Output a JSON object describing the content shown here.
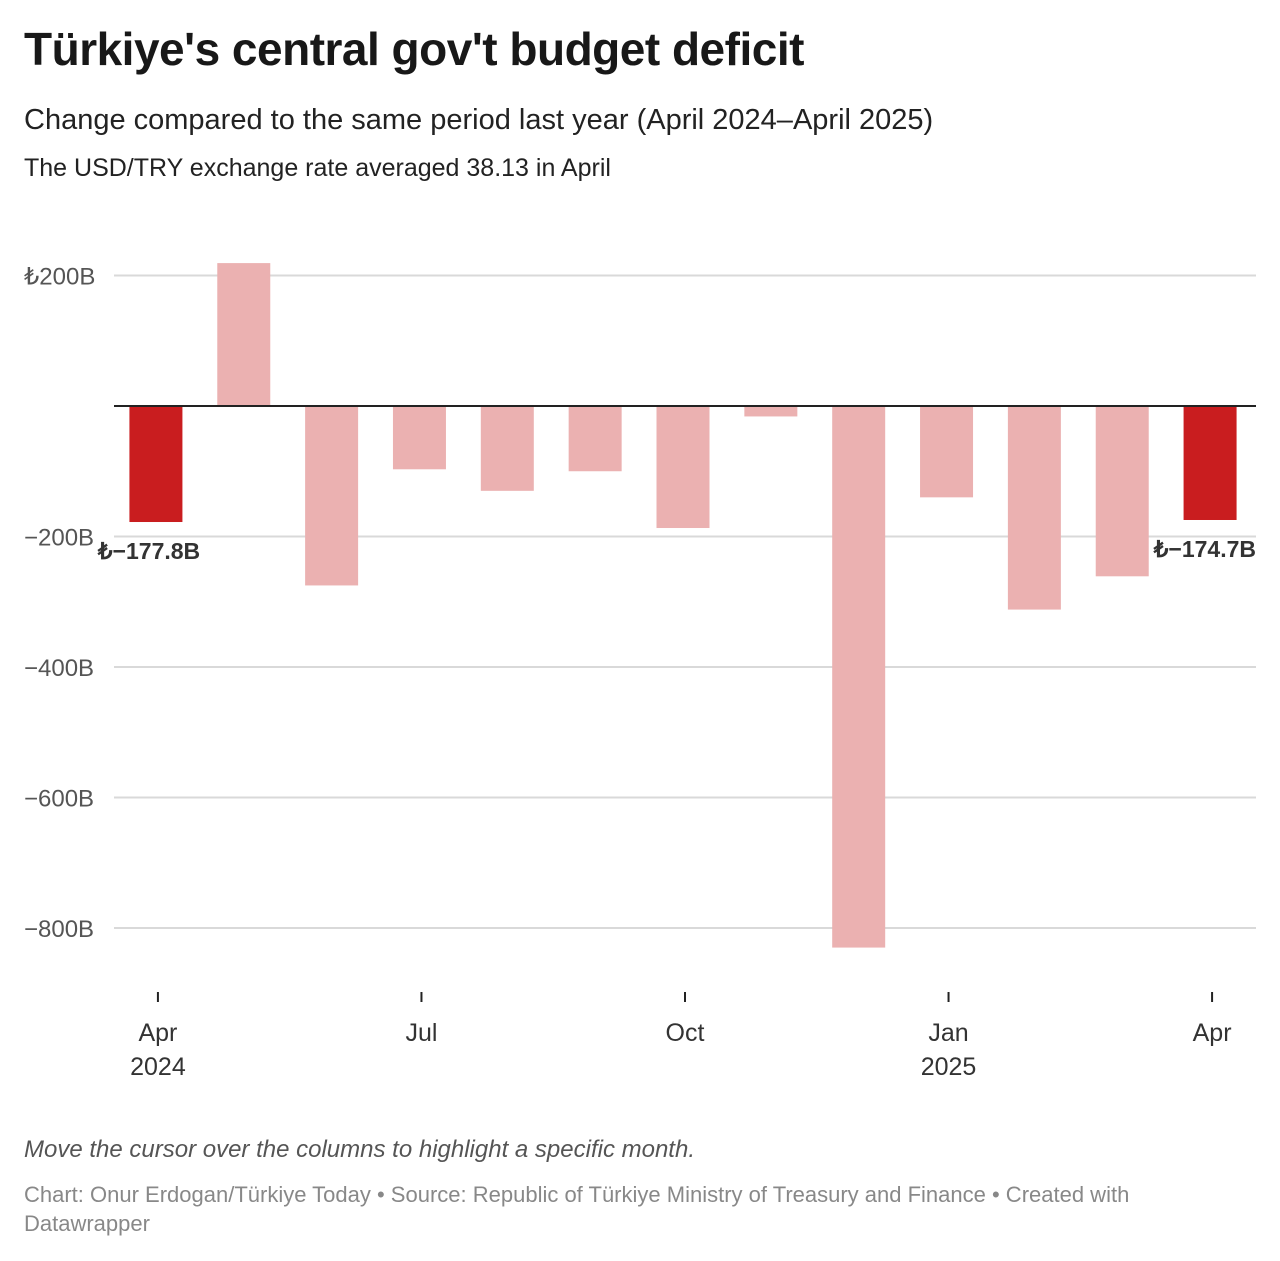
{
  "header": {
    "title": "Türkiye's central gov't budget deficit",
    "subtitle": "Change compared to the same period last year (April 2024–April 2025)",
    "note": "The USD/TRY exchange rate averaged 38.13 in April"
  },
  "footer": {
    "hint": "Move the cursor over the columns to highlight a specific month.",
    "credits": "Chart: Onur Erdogan/Türkiye Today • Source: Republic of Türkiye Ministry of Treasury and Finance • Created with Datawrapper"
  },
  "chart_data": {
    "type": "bar",
    "title": "Türkiye's central gov't budget deficit",
    "categories": [
      "Apr 2024",
      "May 2024",
      "Jun 2024",
      "Jul 2024",
      "Aug 2024",
      "Sep 2024",
      "Oct 2024",
      "Nov 2024",
      "Dec 2024",
      "Jan 2025",
      "Feb 2025",
      "Mar 2025",
      "Apr 2025"
    ],
    "values": [
      -177.8,
      219,
      -275,
      -97,
      -130,
      -100,
      -187,
      -16,
      -830,
      -140,
      -312,
      -261,
      -174.7
    ],
    "highlighted": [
      true,
      false,
      false,
      false,
      false,
      false,
      false,
      false,
      false,
      false,
      false,
      false,
      true
    ],
    "ylim": [
      -900,
      240
    ],
    "y_ticks": [
      {
        "value": 200,
        "label": "₺200B"
      },
      {
        "value": -200,
        "label": "−200B"
      },
      {
        "value": -400,
        "label": "−400B"
      },
      {
        "value": -600,
        "label": "−600B"
      },
      {
        "value": -800,
        "label": "−800B"
      }
    ],
    "x_ticks": [
      {
        "index": 0,
        "label": "Apr",
        "year": "2024"
      },
      {
        "index": 3,
        "label": "Jul",
        "year": ""
      },
      {
        "index": 6,
        "label": "Oct",
        "year": ""
      },
      {
        "index": 9,
        "label": "Jan",
        "year": "2025"
      },
      {
        "index": 12,
        "label": "Apr",
        "year": ""
      }
    ],
    "value_labels": [
      {
        "index": 0,
        "text": "₺−177.8B"
      },
      {
        "index": 12,
        "text": "₺−174.7B"
      }
    ],
    "colors": {
      "highlight": "#c91d1f",
      "normal": "#ebb1b1",
      "grid": "#d9d9d9",
      "baseline": "#222222"
    },
    "grid": true
  }
}
